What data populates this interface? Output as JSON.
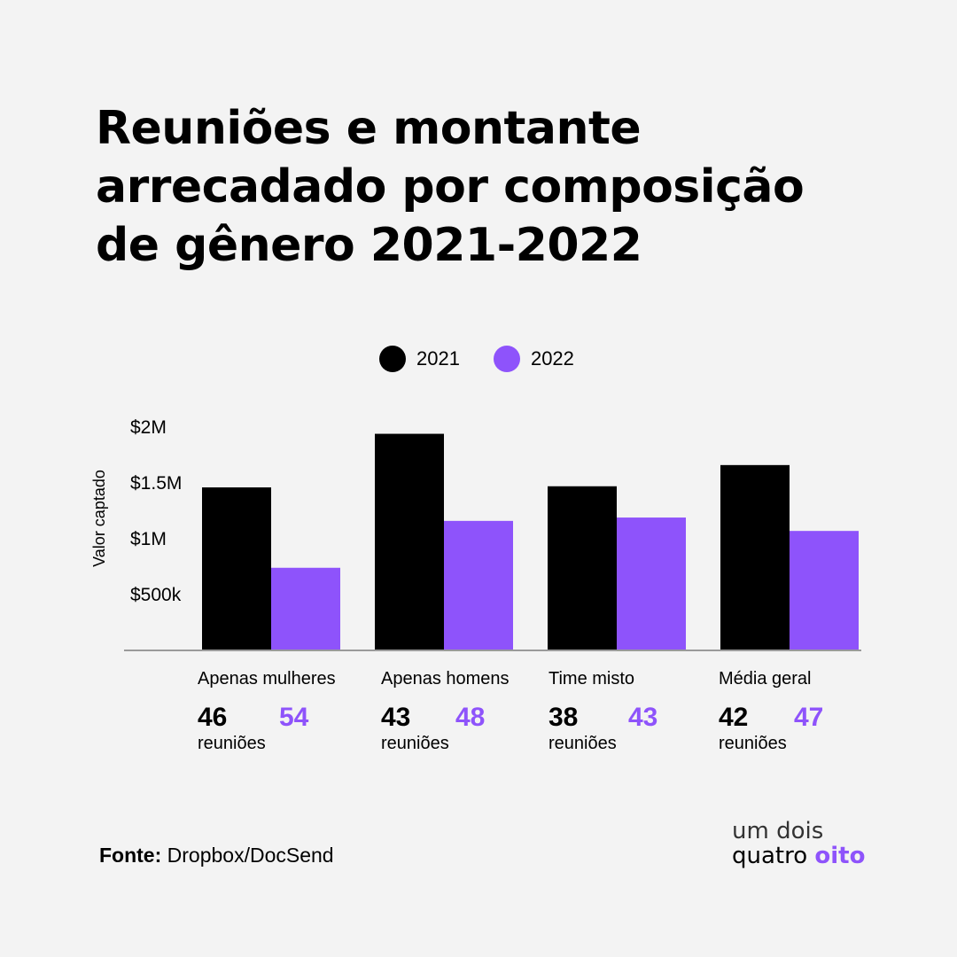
{
  "title_lines": [
    "Reuniões e montante",
    "arrecadado por composição",
    "de gênero 2021-2022"
  ],
  "colors": {
    "series_2021": "#000000",
    "series_2022": "#8e53fb",
    "background": "#f3f3f3"
  },
  "chart_data": {
    "type": "bar",
    "title": "Reuniões e montante arrecadado por composição de gênero 2021-2022",
    "xlabel": "",
    "ylabel": "Valor captado",
    "ylim": [
      0,
      2000000
    ],
    "yticks": [
      500000,
      1000000,
      1500000,
      2000000
    ],
    "ytick_labels": [
      "$500k",
      "$1M",
      "$1.5M",
      "$2M"
    ],
    "categories": [
      "Apenas mulheres",
      "Apenas homens",
      "Time misto",
      "Média geral"
    ],
    "series": [
      {
        "name": "2021",
        "values": [
          1460000,
          1940000,
          1470000,
          1660000
        ]
      },
      {
        "name": "2022",
        "values": [
          740000,
          1160000,
          1190000,
          1070000
        ]
      }
    ],
    "legend": "top-center"
  },
  "meetings": {
    "unit_label": "reuniões",
    "rows": [
      {
        "y2021": "46",
        "y2022": "54"
      },
      {
        "y2021": "43",
        "y2022": "48"
      },
      {
        "y2021": "38",
        "y2022": "43"
      },
      {
        "y2021": "42",
        "y2022": "47"
      }
    ]
  },
  "source": {
    "label": "Fonte:",
    "text": "Dropbox/DocSend"
  },
  "brand": {
    "line1": "um dois",
    "line2_main": "quatro",
    "line2_accent": "oito"
  }
}
